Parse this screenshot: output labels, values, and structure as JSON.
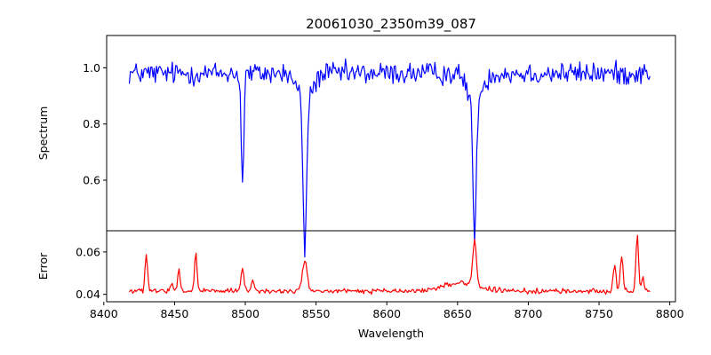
{
  "title": "20061030_2350m39_087",
  "colors": {
    "spectrum": "#0000ff",
    "error": "#ff0000",
    "frame": "#000000"
  },
  "chart_data": [
    {
      "type": "line",
      "panel": "top",
      "ylabel": "Spectrum",
      "xlim": [
        8402,
        8804
      ],
      "ylim": [
        0.42,
        1.115
      ],
      "yticks": [
        0.6,
        0.8,
        1.0
      ],
      "ytick_labels": [
        "0.6",
        "0.8",
        "1.0"
      ],
      "grid": false,
      "series": [
        {
          "color": "#0000ff",
          "baseline": 0.98,
          "noise": 0.04,
          "x_range": [
            8418,
            8786
          ],
          "step": 0.8,
          "absorption_lines": [
            {
              "center": 8498.0,
              "depth": 0.4,
              "width": 0.9
            },
            {
              "center": 8542.1,
              "depth": 0.54,
              "width": 1.2
            },
            {
              "center": 8662.1,
              "depth": 0.52,
              "width": 1.1
            }
          ],
          "wings": [
            {
              "center": 8542.1,
              "depth": 0.1,
              "width": 5.0
            },
            {
              "center": 8662.1,
              "depth": 0.1,
              "width": 5.0
            }
          ]
        }
      ]
    },
    {
      "type": "line",
      "panel": "bottom",
      "xlabel": "Wavelength",
      "ylabel": "Error",
      "xlim": [
        8402,
        8804
      ],
      "ylim": [
        0.0365,
        0.07
      ],
      "xticks": [
        8400,
        8450,
        8500,
        8550,
        8600,
        8650,
        8700,
        8750,
        8800
      ],
      "xtick_labels": [
        "8400",
        "8450",
        "8500",
        "8550",
        "8600",
        "8650",
        "8700",
        "8750",
        "8800"
      ],
      "yticks": [
        0.04,
        0.06
      ],
      "ytick_labels": [
        "0.04",
        "0.06"
      ],
      "grid": false,
      "series": [
        {
          "color": "#ff0000",
          "baseline": 0.0415,
          "noise": 0.0012,
          "x_range": [
            8418,
            8786
          ],
          "step": 0.8,
          "emission_peaks": [
            {
              "center": 8430,
              "height": 0.017,
              "width": 0.9
            },
            {
              "center": 8448,
              "height": 0.004,
              "width": 0.8
            },
            {
              "center": 8453,
              "height": 0.01,
              "width": 0.8
            },
            {
              "center": 8465,
              "height": 0.018,
              "width": 0.9
            },
            {
              "center": 8498,
              "height": 0.011,
              "width": 1.0
            },
            {
              "center": 8505,
              "height": 0.006,
              "width": 0.8
            },
            {
              "center": 8542,
              "height": 0.015,
              "width": 1.6
            },
            {
              "center": 8662,
              "height": 0.021,
              "width": 1.3
            },
            {
              "center": 8761,
              "height": 0.013,
              "width": 1.0
            },
            {
              "center": 8766,
              "height": 0.016,
              "width": 1.0
            },
            {
              "center": 8777,
              "height": 0.026,
              "width": 0.9
            },
            {
              "center": 8781,
              "height": 0.006,
              "width": 0.8
            }
          ],
          "broad_bump": {
            "center": 8652,
            "height": 0.004,
            "width": 12
          }
        }
      ]
    }
  ]
}
